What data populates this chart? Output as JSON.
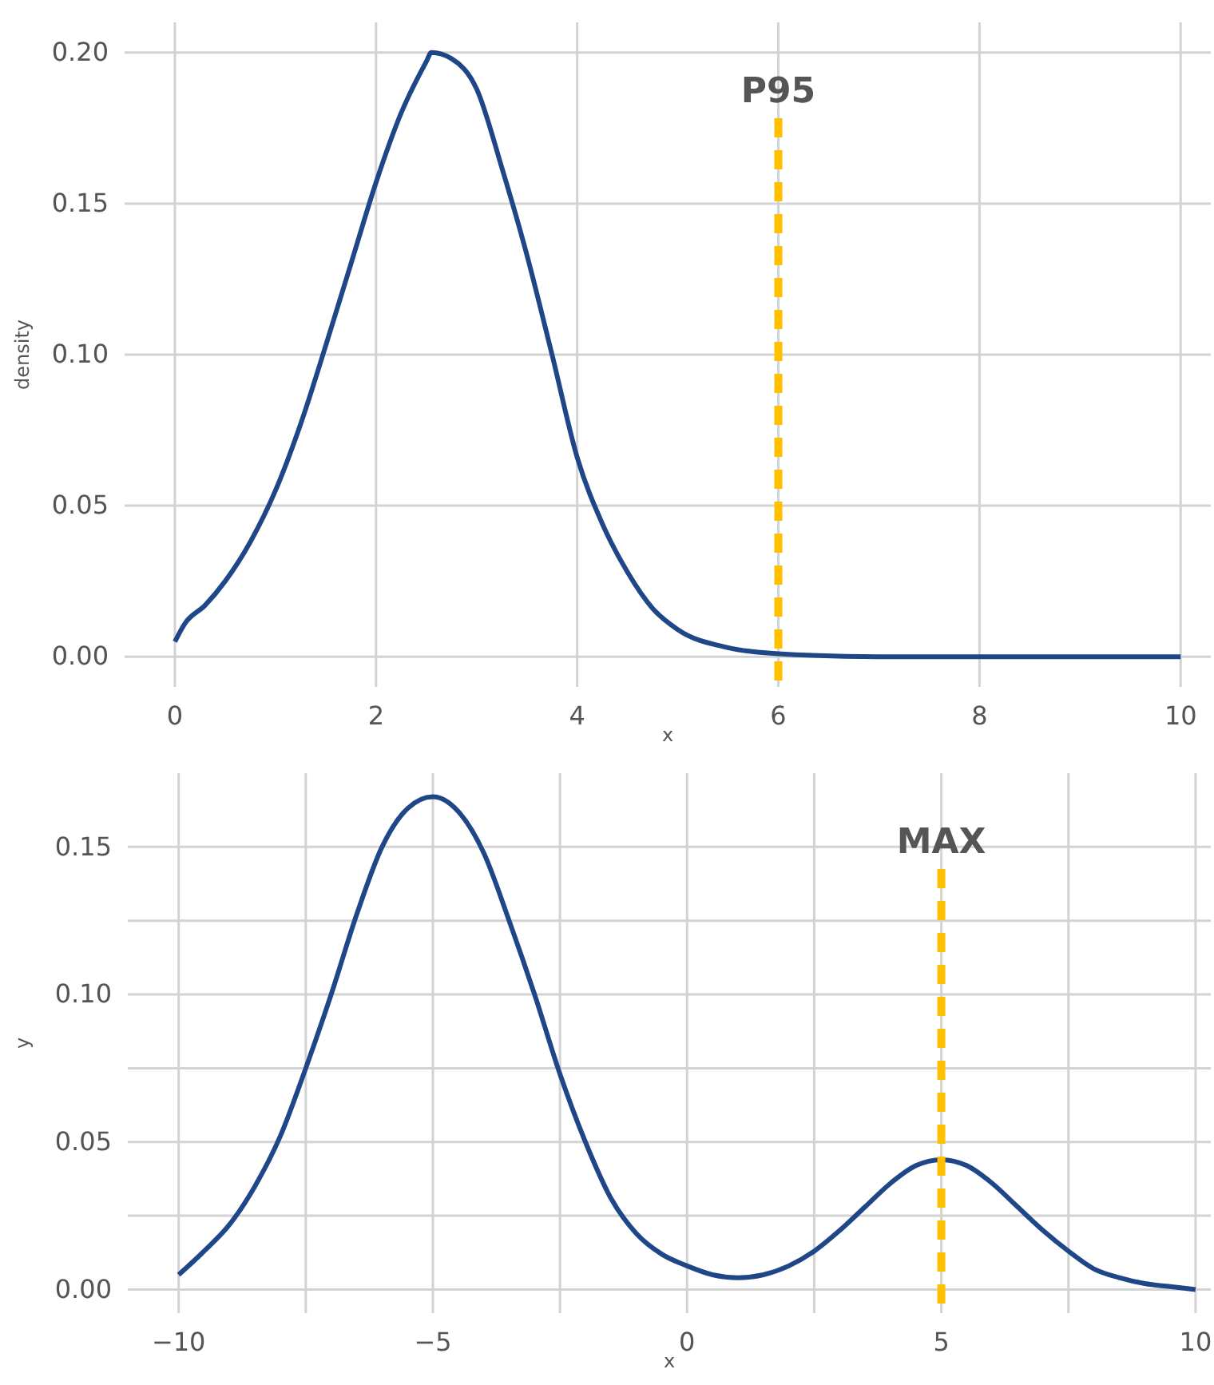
{
  "chart_data": [
    {
      "type": "line",
      "xlabel": "x",
      "ylabel": "density",
      "xlim": [
        -0.5,
        10.3
      ],
      "ylim": [
        -0.01,
        0.21
      ],
      "xticks": [
        0,
        2,
        4,
        6,
        8,
        10
      ],
      "yticks": [
        {
          "value": 0,
          "label": "0.00"
        },
        {
          "value": 0.05,
          "label": "0.05"
        },
        {
          "value": 0.1,
          "label": "0.10"
        },
        {
          "value": 0.15,
          "label": "0.15"
        },
        {
          "value": 0.2,
          "label": "0.20"
        }
      ],
      "grid": true,
      "line_style": "solid",
      "marker": "none",
      "x": [
        0,
        0.1,
        0.3,
        0.5,
        0.75,
        1,
        1.25,
        1.5,
        1.75,
        2,
        2.25,
        2.5,
        2.55,
        2.75,
        3,
        3.25,
        3.5,
        3.75,
        4,
        4.25,
        4.5,
        4.75,
        5,
        5.5,
        6,
        7,
        8,
        9,
        10
      ],
      "series": [
        {
          "color": "#1f4788",
          "values": [
            0.005,
            0.011,
            0.017,
            0.025,
            0.038,
            0.055,
            0.077,
            0.103,
            0.13,
            0.157,
            0.18,
            0.197,
            0.2,
            0.198,
            0.188,
            0.162,
            0.133,
            0.1,
            0.066,
            0.044,
            0.028,
            0.016,
            0.009,
            0.003,
            0.001,
            0,
            0,
            0,
            0
          ]
        }
      ],
      "ref_lines": [
        {
          "axis": "x",
          "value": 6,
          "label": "P95",
          "color": "#ffc000",
          "line_style": "dashed"
        }
      ]
    },
    {
      "type": "line",
      "xlabel": "x",
      "ylabel": "y",
      "xlim": [
        -11,
        10.3
      ],
      "ylim": [
        -0.008,
        0.175
      ],
      "xticks": [
        {
          "value": -10,
          "label": "−10"
        },
        {
          "value": -7.5,
          "label": null
        },
        {
          "value": -5,
          "label": "−5"
        },
        {
          "value": -2.5,
          "label": null
        },
        0,
        {
          "value": 2.5,
          "label": null
        },
        5,
        {
          "value": 7.5,
          "label": null
        },
        10
      ],
      "yticks": [
        {
          "value": 0,
          "label": "0.00"
        },
        {
          "value": 0.025,
          "label": null
        },
        {
          "value": 0.05,
          "label": "0.05"
        },
        {
          "value": 0.075,
          "label": null
        },
        {
          "value": 0.1,
          "label": "0.10"
        },
        {
          "value": 0.125,
          "label": null
        },
        {
          "value": 0.15,
          "label": "0.15"
        }
      ],
      "grid": true,
      "line_style": "solid",
      "marker": "none",
      "x": [
        -10,
        -9.5,
        -9,
        -8.5,
        -8,
        -7.5,
        -7,
        -6.5,
        -6,
        -5.5,
        -5,
        -4.5,
        -4,
        -3.5,
        -3,
        -2.5,
        -2,
        -1.5,
        -1,
        -0.5,
        0,
        0.5,
        1,
        1.5,
        2,
        2.5,
        3,
        3.5,
        4,
        4.5,
        5,
        5.5,
        6,
        6.5,
        7,
        7.5,
        8,
        8.5,
        9,
        9.5,
        10
      ],
      "series": [
        {
          "color": "#1f4788",
          "values": [
            0.005,
            0.013,
            0.022,
            0.035,
            0.052,
            0.075,
            0.1,
            0.127,
            0.15,
            0.163,
            0.167,
            0.162,
            0.148,
            0.125,
            0.1,
            0.073,
            0.05,
            0.031,
            0.019,
            0.012,
            0.008,
            0.005,
            0.004,
            0.005,
            0.008,
            0.013,
            0.02,
            0.028,
            0.036,
            0.042,
            0.044,
            0.042,
            0.036,
            0.028,
            0.02,
            0.013,
            0.007,
            0.004,
            0.002,
            0.001,
            0
          ]
        }
      ],
      "ref_lines": [
        {
          "axis": "x",
          "value": 5,
          "label": "MAX",
          "color": "#ffc000",
          "line_style": "dashed"
        }
      ]
    }
  ]
}
